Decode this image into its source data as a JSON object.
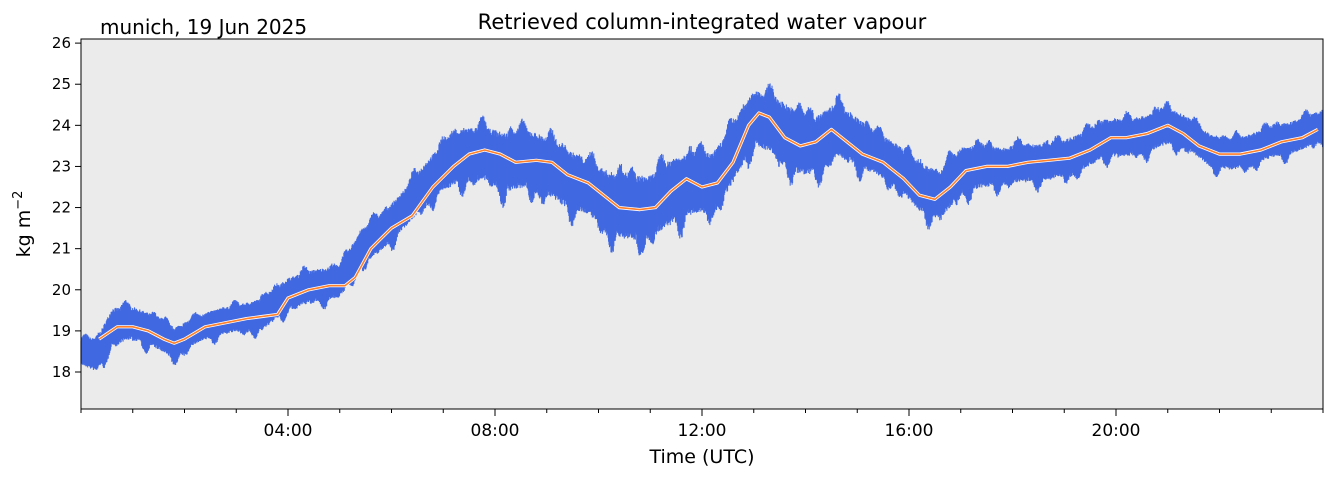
{
  "chart_data": {
    "type": "line",
    "title": "Retrieved column-integrated water vapour",
    "subtitle": "munich, 19 Jun 2025",
    "xlabel": "Time (UTC)",
    "ylabel": "kg m",
    "ylabel_sup": "−2",
    "xlim_hours": [
      0,
      24
    ],
    "ylim": [
      17.1,
      26.1
    ],
    "x_ticks_hours": [
      4,
      8,
      12,
      16,
      20
    ],
    "x_tick_labels": [
      "04:00",
      "08:00",
      "12:00",
      "16:00",
      "20:00"
    ],
    "y_ticks": [
      18,
      19,
      20,
      21,
      22,
      23,
      24,
      25,
      26
    ],
    "y_tick_labels": [
      "18",
      "19",
      "20",
      "21",
      "22",
      "23",
      "24",
      "25",
      "26"
    ],
    "grid": false,
    "background": "#ebebeb",
    "series": [
      {
        "style": "scatter-band",
        "color": "#4169e1",
        "points": [
          {
            "x": 0.0,
            "y": 18.5,
            "spread": 0.25
          },
          {
            "x": 0.3,
            "y": 18.4,
            "spread": 0.3
          },
          {
            "x": 0.6,
            "y": 19.1,
            "spread": 0.35
          },
          {
            "x": 1.0,
            "y": 19.2,
            "spread": 0.3
          },
          {
            "x": 1.4,
            "y": 19.0,
            "spread": 0.3
          },
          {
            "x": 1.8,
            "y": 18.7,
            "spread": 0.3
          },
          {
            "x": 2.2,
            "y": 19.0,
            "spread": 0.25
          },
          {
            "x": 2.6,
            "y": 19.2,
            "spread": 0.25
          },
          {
            "x": 3.0,
            "y": 19.3,
            "spread": 0.25
          },
          {
            "x": 3.5,
            "y": 19.4,
            "spread": 0.3
          },
          {
            "x": 4.0,
            "y": 19.9,
            "spread": 0.3
          },
          {
            "x": 4.5,
            "y": 20.1,
            "spread": 0.3
          },
          {
            "x": 5.0,
            "y": 20.2,
            "spread": 0.3
          },
          {
            "x": 5.4,
            "y": 21.0,
            "spread": 0.35
          },
          {
            "x": 5.8,
            "y": 21.4,
            "spread": 0.35
          },
          {
            "x": 6.2,
            "y": 21.9,
            "spread": 0.35
          },
          {
            "x": 6.6,
            "y": 22.5,
            "spread": 0.4
          },
          {
            "x": 7.0,
            "y": 23.0,
            "spread": 0.45
          },
          {
            "x": 7.4,
            "y": 23.3,
            "spread": 0.5
          },
          {
            "x": 7.8,
            "y": 23.3,
            "spread": 0.5
          },
          {
            "x": 8.2,
            "y": 23.1,
            "spread": 0.55
          },
          {
            "x": 8.6,
            "y": 23.2,
            "spread": 0.55
          },
          {
            "x": 9.0,
            "y": 23.0,
            "spread": 0.55
          },
          {
            "x": 9.4,
            "y": 22.7,
            "spread": 0.55
          },
          {
            "x": 9.8,
            "y": 22.5,
            "spread": 0.5
          },
          {
            "x": 10.2,
            "y": 22.1,
            "spread": 0.6
          },
          {
            "x": 10.6,
            "y": 22.0,
            "spread": 0.6
          },
          {
            "x": 11.0,
            "y": 22.0,
            "spread": 0.6
          },
          {
            "x": 11.4,
            "y": 22.4,
            "spread": 0.6
          },
          {
            "x": 11.8,
            "y": 22.6,
            "spread": 0.6
          },
          {
            "x": 12.2,
            "y": 22.6,
            "spread": 0.55
          },
          {
            "x": 12.6,
            "y": 23.3,
            "spread": 0.55
          },
          {
            "x": 13.0,
            "y": 24.2,
            "spread": 0.5
          },
          {
            "x": 13.4,
            "y": 24.0,
            "spread": 0.55
          },
          {
            "x": 13.8,
            "y": 23.6,
            "spread": 0.6
          },
          {
            "x": 14.2,
            "y": 23.5,
            "spread": 0.55
          },
          {
            "x": 14.6,
            "y": 23.9,
            "spread": 0.5
          },
          {
            "x": 15.0,
            "y": 23.6,
            "spread": 0.45
          },
          {
            "x": 15.4,
            "y": 23.3,
            "spread": 0.4
          },
          {
            "x": 15.8,
            "y": 23.0,
            "spread": 0.4
          },
          {
            "x": 16.2,
            "y": 22.5,
            "spread": 0.45
          },
          {
            "x": 16.6,
            "y": 22.3,
            "spread": 0.45
          },
          {
            "x": 17.0,
            "y": 22.9,
            "spread": 0.45
          },
          {
            "x": 17.4,
            "y": 23.0,
            "spread": 0.4
          },
          {
            "x": 17.8,
            "y": 23.0,
            "spread": 0.35
          },
          {
            "x": 18.2,
            "y": 23.1,
            "spread": 0.35
          },
          {
            "x": 18.6,
            "y": 23.1,
            "spread": 0.35
          },
          {
            "x": 19.0,
            "y": 23.2,
            "spread": 0.35
          },
          {
            "x": 19.4,
            "y": 23.4,
            "spread": 0.35
          },
          {
            "x": 19.8,
            "y": 23.7,
            "spread": 0.35
          },
          {
            "x": 20.2,
            "y": 23.7,
            "spread": 0.35
          },
          {
            "x": 20.6,
            "y": 23.8,
            "spread": 0.35
          },
          {
            "x": 21.0,
            "y": 24.0,
            "spread": 0.35
          },
          {
            "x": 21.4,
            "y": 23.8,
            "spread": 0.3
          },
          {
            "x": 21.8,
            "y": 23.4,
            "spread": 0.3
          },
          {
            "x": 22.2,
            "y": 23.3,
            "spread": 0.3
          },
          {
            "x": 22.6,
            "y": 23.4,
            "spread": 0.3
          },
          {
            "x": 23.0,
            "y": 23.6,
            "spread": 0.3
          },
          {
            "x": 23.4,
            "y": 23.7,
            "spread": 0.3
          },
          {
            "x": 24.0,
            "y": 24.0,
            "spread": 0.3
          }
        ]
      },
      {
        "style": "smoothed-line",
        "color": "#ff7f2a",
        "outline_color": "#ffffff",
        "x": [
          0.35,
          0.7,
          1.0,
          1.3,
          1.6,
          1.8,
          2.0,
          2.4,
          2.8,
          3.2,
          3.5,
          3.8,
          4.0,
          4.4,
          4.8,
          5.1,
          5.3,
          5.6,
          6.0,
          6.4,
          6.8,
          7.2,
          7.5,
          7.8,
          8.1,
          8.4,
          8.8,
          9.1,
          9.4,
          9.8,
          10.1,
          10.4,
          10.8,
          11.1,
          11.4,
          11.7,
          12.0,
          12.3,
          12.6,
          12.9,
          13.1,
          13.3,
          13.6,
          13.9,
          14.2,
          14.5,
          14.8,
          15.1,
          15.5,
          15.9,
          16.2,
          16.5,
          16.8,
          17.1,
          17.5,
          17.9,
          18.3,
          18.7,
          19.1,
          19.5,
          19.9,
          20.2,
          20.6,
          21.0,
          21.3,
          21.6,
          22.0,
          22.4,
          22.8,
          23.2,
          23.6,
          23.9
        ],
        "y": [
          18.8,
          19.1,
          19.1,
          19.0,
          18.8,
          18.7,
          18.8,
          19.1,
          19.2,
          19.3,
          19.35,
          19.4,
          19.8,
          20.0,
          20.1,
          20.1,
          20.3,
          21.0,
          21.5,
          21.8,
          22.5,
          23.0,
          23.3,
          23.4,
          23.3,
          23.1,
          23.15,
          23.1,
          22.8,
          22.6,
          22.3,
          22.0,
          21.95,
          22.0,
          22.4,
          22.7,
          22.5,
          22.6,
          23.1,
          24.0,
          24.3,
          24.2,
          23.7,
          23.5,
          23.6,
          23.9,
          23.6,
          23.3,
          23.1,
          22.7,
          22.3,
          22.2,
          22.5,
          22.9,
          23.0,
          23.0,
          23.1,
          23.15,
          23.2,
          23.4,
          23.7,
          23.7,
          23.8,
          24.0,
          23.8,
          23.5,
          23.3,
          23.3,
          23.4,
          23.6,
          23.7,
          23.9
        ]
      }
    ]
  }
}
